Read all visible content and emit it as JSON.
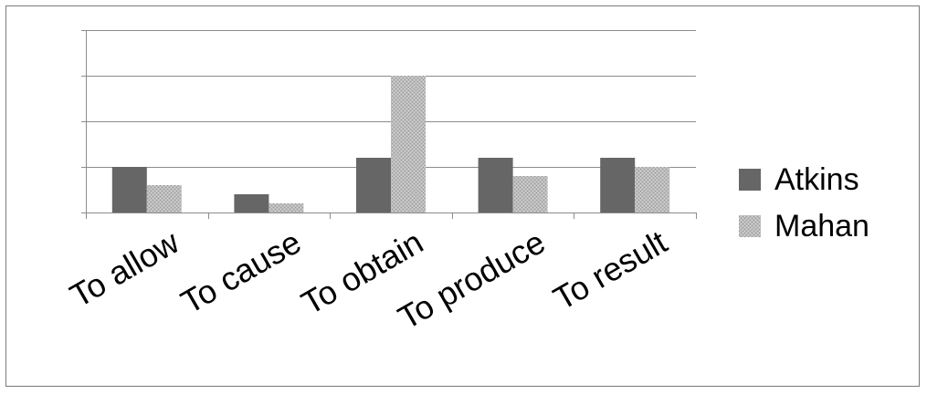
{
  "chart_data": {
    "type": "bar",
    "categories": [
      "To allow",
      "To cause",
      "To obtain",
      "To produce",
      "To result"
    ],
    "series": [
      {
        "name": "Atkins",
        "values": [
          1,
          0.4,
          1.2,
          1.2,
          1.2
        ],
        "color": "#666666",
        "pattern": "solid"
      },
      {
        "name": "Mahan",
        "values": [
          0.6,
          0.2,
          3,
          0.8,
          1
        ],
        "color": "#b8b8b8",
        "pattern": "stipple"
      }
    ],
    "ylim": [
      0,
      4
    ],
    "gridlines": [
      1,
      2,
      3,
      4
    ],
    "grid": true,
    "legend_position": "right",
    "title": "",
    "xlabel": "",
    "ylabel": ""
  }
}
